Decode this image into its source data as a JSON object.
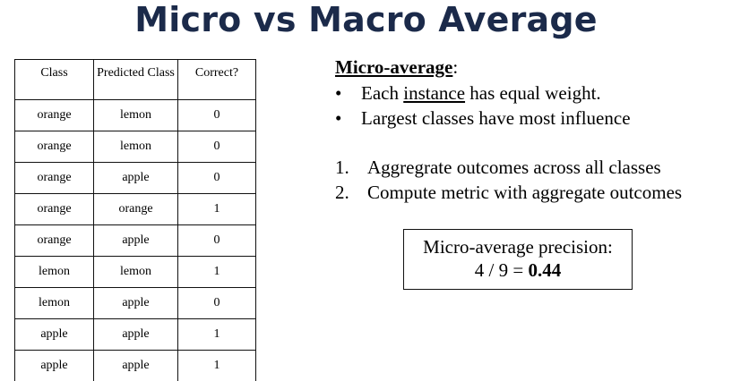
{
  "slide": {
    "title": "Micro vs Macro Average"
  },
  "table": {
    "headers": [
      "Class",
      "Predicted Class",
      "Correct?"
    ],
    "rows": [
      [
        "orange",
        "lemon",
        "0"
      ],
      [
        "orange",
        "lemon",
        "0"
      ],
      [
        "orange",
        "apple",
        "0"
      ],
      [
        "orange",
        "orange",
        "1"
      ],
      [
        "orange",
        "apple",
        "0"
      ],
      [
        "lemon",
        "lemon",
        "1"
      ],
      [
        "lemon",
        "apple",
        "0"
      ],
      [
        "apple",
        "apple",
        "1"
      ],
      [
        "apple",
        "apple",
        "1"
      ]
    ]
  },
  "micro": {
    "heading": "Micro-average",
    "heading_suffix": ":",
    "bullet_symbol": "•",
    "bullet1_pre": "Each ",
    "bullet1_underlined": "instance",
    "bullet1_post": " has equal weight.",
    "bullet2": "Largest classes have most influence",
    "steps": [
      {
        "num": "1.",
        "text": "Aggregrate outcomes across all classes"
      },
      {
        "num": "2.",
        "text": "Compute metric with aggregate outcomes"
      }
    ]
  },
  "result": {
    "line1": "Micro-average precision:",
    "expr": "4 / 9 = ",
    "value": "0.44"
  }
}
